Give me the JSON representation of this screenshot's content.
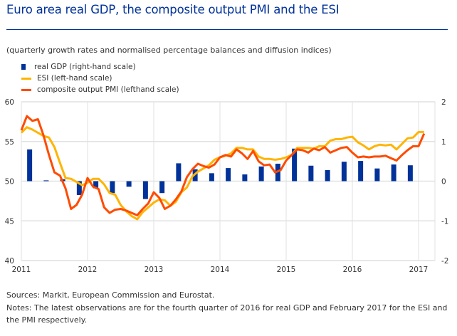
{
  "title": "Euro area real GDP, the composite output PMI and the ESI",
  "subtitle": "(quarterly growth rates and normalised percentage balances and diffusion indices)",
  "sources": "Sources: Markit, European Commission and Eurostat.",
  "notes": "Notes: The latest observations are for the fourth quarter of 2016 for real GDP and February 2017 for the ESI and the PMI respectively.",
  "chart_data": {
    "type": "bar+line",
    "title": "Euro area real GDP, the composite output PMI and the ESI",
    "legend": [
      {
        "label": "real GDP (right-hand scale)",
        "color": "#003299",
        "kind": "bar"
      },
      {
        "label": "ESI (left-hand scale)",
        "color": "#ffb400",
        "kind": "line"
      },
      {
        "label": "composite output PMI (lefthand scale)",
        "color": "#ff4b00",
        "kind": "line"
      }
    ],
    "legend_placement": "top-left",
    "x_ticks": [
      "2011",
      "2012",
      "2013",
      "2014",
      "2015",
      "2016",
      "2017"
    ],
    "y_left": {
      "range": [
        40,
        60
      ],
      "ticks": [
        "40",
        "45",
        "50",
        "55",
        "60"
      ]
    },
    "y_right": {
      "range": [
        -2,
        2
      ],
      "ticks": [
        "-2",
        "-1",
        "0",
        "1",
        "2"
      ]
    },
    "grid": true,
    "series": [
      {
        "name": "real GDP",
        "axis": "right",
        "frequency": "quarterly",
        "start": "2011Q1",
        "values": [
          0.8,
          0.02,
          0.05,
          -0.35,
          -0.18,
          -0.3,
          -0.14,
          -0.45,
          -0.3,
          0.45,
          0.3,
          0.2,
          0.33,
          0.17,
          0.37,
          0.44,
          0.82,
          0.39,
          0.28,
          0.49,
          0.51,
          0.32,
          0.42,
          0.4
        ]
      },
      {
        "name": "ESI",
        "axis": "left",
        "frequency": "monthly",
        "start": "2011-01",
        "values": [
          56.1,
          56.8,
          56.5,
          56.1,
          55.7,
          55.5,
          54.3,
          52.3,
          50.4,
          50.3,
          49.9,
          49.5,
          49.8,
          50.3,
          50.3,
          49.6,
          48.5,
          48.3,
          47.0,
          46.2,
          45.6,
          45.2,
          46.1,
          46.7,
          47.3,
          47.7,
          47.6,
          46.9,
          47.4,
          48.6,
          49.2,
          50.6,
          51.2,
          51.6,
          52.0,
          52.7,
          53.0,
          53.2,
          53.5,
          54.2,
          54.2,
          54.0,
          54.0,
          53.1,
          52.8,
          52.8,
          52.7,
          52.8,
          53.0,
          53.3,
          54.2,
          54.2,
          54.2,
          54.1,
          54.4,
          54.4,
          55.1,
          55.3,
          55.3,
          55.5,
          55.6,
          54.9,
          54.5,
          54.0,
          54.4,
          54.6,
          54.5,
          54.6,
          54.0,
          54.7,
          55.4,
          55.5,
          56.2,
          56.2
        ]
      },
      {
        "name": "composite output PMI",
        "axis": "left",
        "frequency": "monthly",
        "start": "2011-01",
        "values": [
          56.4,
          58.2,
          57.6,
          57.8,
          55.8,
          53.3,
          51.1,
          50.7,
          49.1,
          46.5,
          47.0,
          48.3,
          50.4,
          49.3,
          49.0,
          46.7,
          46.0,
          46.4,
          46.5,
          46.3,
          46.0,
          45.7,
          46.5,
          47.2,
          48.6,
          47.9,
          46.5,
          46.9,
          47.7,
          48.7,
          50.5,
          51.5,
          52.2,
          51.9,
          51.7,
          52.1,
          53.0,
          53.3,
          53.1,
          54.0,
          53.5,
          52.8,
          53.8,
          52.5,
          52.0,
          52.1,
          51.1,
          51.4,
          52.6,
          53.3,
          54.0,
          53.9,
          53.6,
          54.1,
          53.9,
          54.3,
          53.6,
          53.9,
          54.2,
          54.3,
          53.6,
          53.0,
          53.1,
          53.0,
          53.1,
          53.1,
          53.2,
          52.9,
          52.6,
          53.3,
          53.9,
          54.4,
          54.4,
          56.0
        ]
      }
    ]
  }
}
